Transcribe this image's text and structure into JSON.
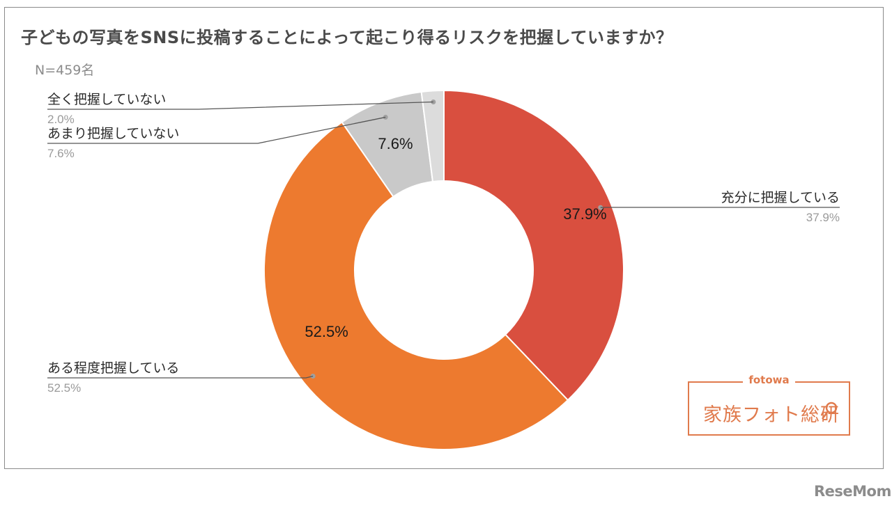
{
  "title": "子どもの写真をSNSに投稿することによって起こり得るリスクを把握していますか？",
  "sample_note": "N=459名",
  "logo": {
    "sub": "fotowa",
    "main": "家族フォト総研"
  },
  "brand": "ReseMom",
  "chart_data": {
    "type": "pie",
    "donut": true,
    "title": "子どもの写真をSNSに投稿することによって起こり得るリスクを把握していますか？",
    "slices": [
      {
        "label": "充分に把握している",
        "value": 37.9,
        "display": "37.9%",
        "color": "#d94f3f"
      },
      {
        "label": "ある程度把握している",
        "value": 52.5,
        "display": "52.5%",
        "color": "#ed7a2f"
      },
      {
        "label": "あまり把握していない",
        "value": 7.6,
        "display": "7.6%",
        "color": "#c9c9c9"
      },
      {
        "label": "全く把握していない",
        "value": 2.0,
        "display": "2.0%",
        "color": "#dcdcdc"
      }
    ]
  }
}
